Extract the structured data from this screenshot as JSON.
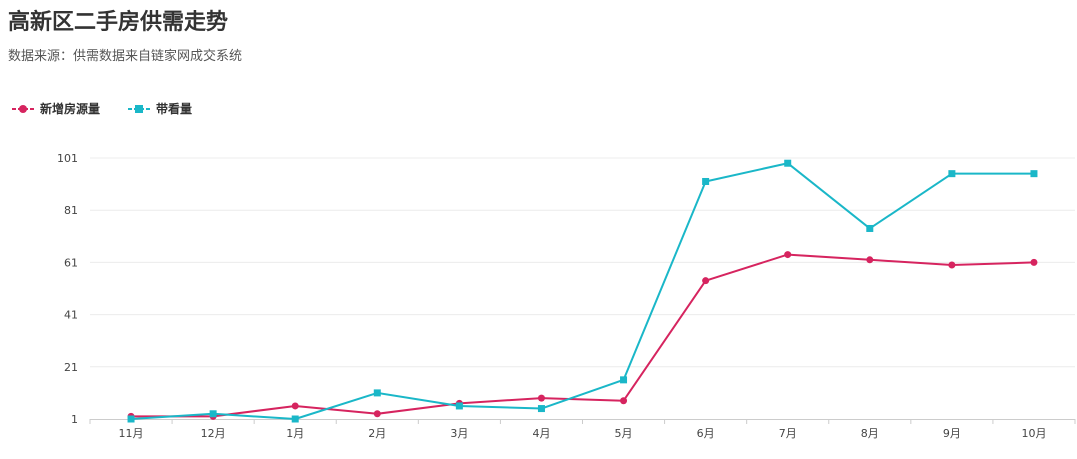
{
  "chart_data": {
    "type": "line",
    "title": "高新区二手房供需走势",
    "subtitle": "数据来源：供需数据来自链家网成交系统",
    "categories": [
      "11月",
      "12月",
      "1月",
      "2月",
      "3月",
      "4月",
      "5月",
      "6月",
      "7月",
      "8月",
      "9月",
      "10月"
    ],
    "y_ticks": [
      1,
      21,
      41,
      61,
      81,
      101
    ],
    "ylim": [
      1,
      101
    ],
    "grid": true,
    "legend_position": "top-left",
    "series": [
      {
        "name": "新增房源量",
        "color": "#d6245f",
        "marker": "circle",
        "values": [
          2,
          2,
          6,
          3,
          7,
          9,
          8,
          54,
          64,
          62,
          60,
          61
        ]
      },
      {
        "name": "带看量",
        "color": "#1ab7c8",
        "marker": "square",
        "values": [
          1,
          3,
          1,
          11,
          6,
          5,
          16,
          92,
          99,
          74,
          95,
          95
        ]
      }
    ]
  }
}
